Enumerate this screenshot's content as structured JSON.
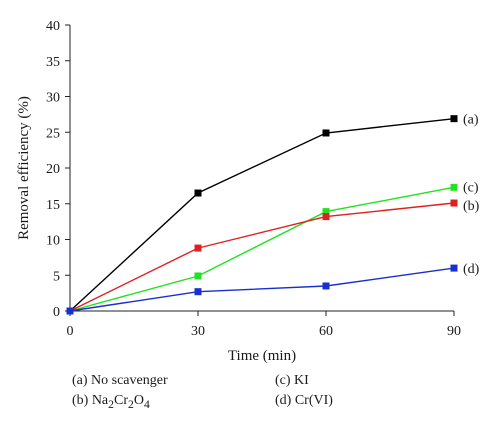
{
  "chart_data": {
    "type": "line",
    "xlabel": "Time (min)",
    "ylabel": "Removal efficiency (%)",
    "x": [
      0,
      30,
      60,
      90
    ],
    "xlim": [
      0,
      90
    ],
    "ylim": [
      0,
      40
    ],
    "xticks": [
      0,
      30,
      60,
      90
    ],
    "yticks": [
      0,
      5,
      10,
      15,
      20,
      25,
      30,
      35,
      40
    ],
    "grid": false,
    "series": [
      {
        "name": "(a)",
        "color": "#000000",
        "values": [
          0,
          16.5,
          24.9,
          26.9
        ]
      },
      {
        "name": "(c)",
        "color": "#22e022",
        "values": [
          0,
          4.9,
          13.9,
          17.3
        ]
      },
      {
        "name": "(b)",
        "color": "#e02020",
        "values": [
          0,
          8.8,
          13.2,
          15.1
        ]
      },
      {
        "name": "(d)",
        "color": "#1a2fd0",
        "values": [
          0,
          2.7,
          3.5,
          6.0
        ]
      }
    ],
    "legend": {
      "position": "bottom",
      "entries": [
        {
          "label": "(a) No scavenger"
        },
        {
          "label_html": "(b) Na<sub>2</sub>Cr<sub>2</sub>O<sub>4</sub>"
        },
        {
          "label": "(c) KI"
        },
        {
          "label": "(d) Cr(VI)"
        }
      ]
    }
  }
}
